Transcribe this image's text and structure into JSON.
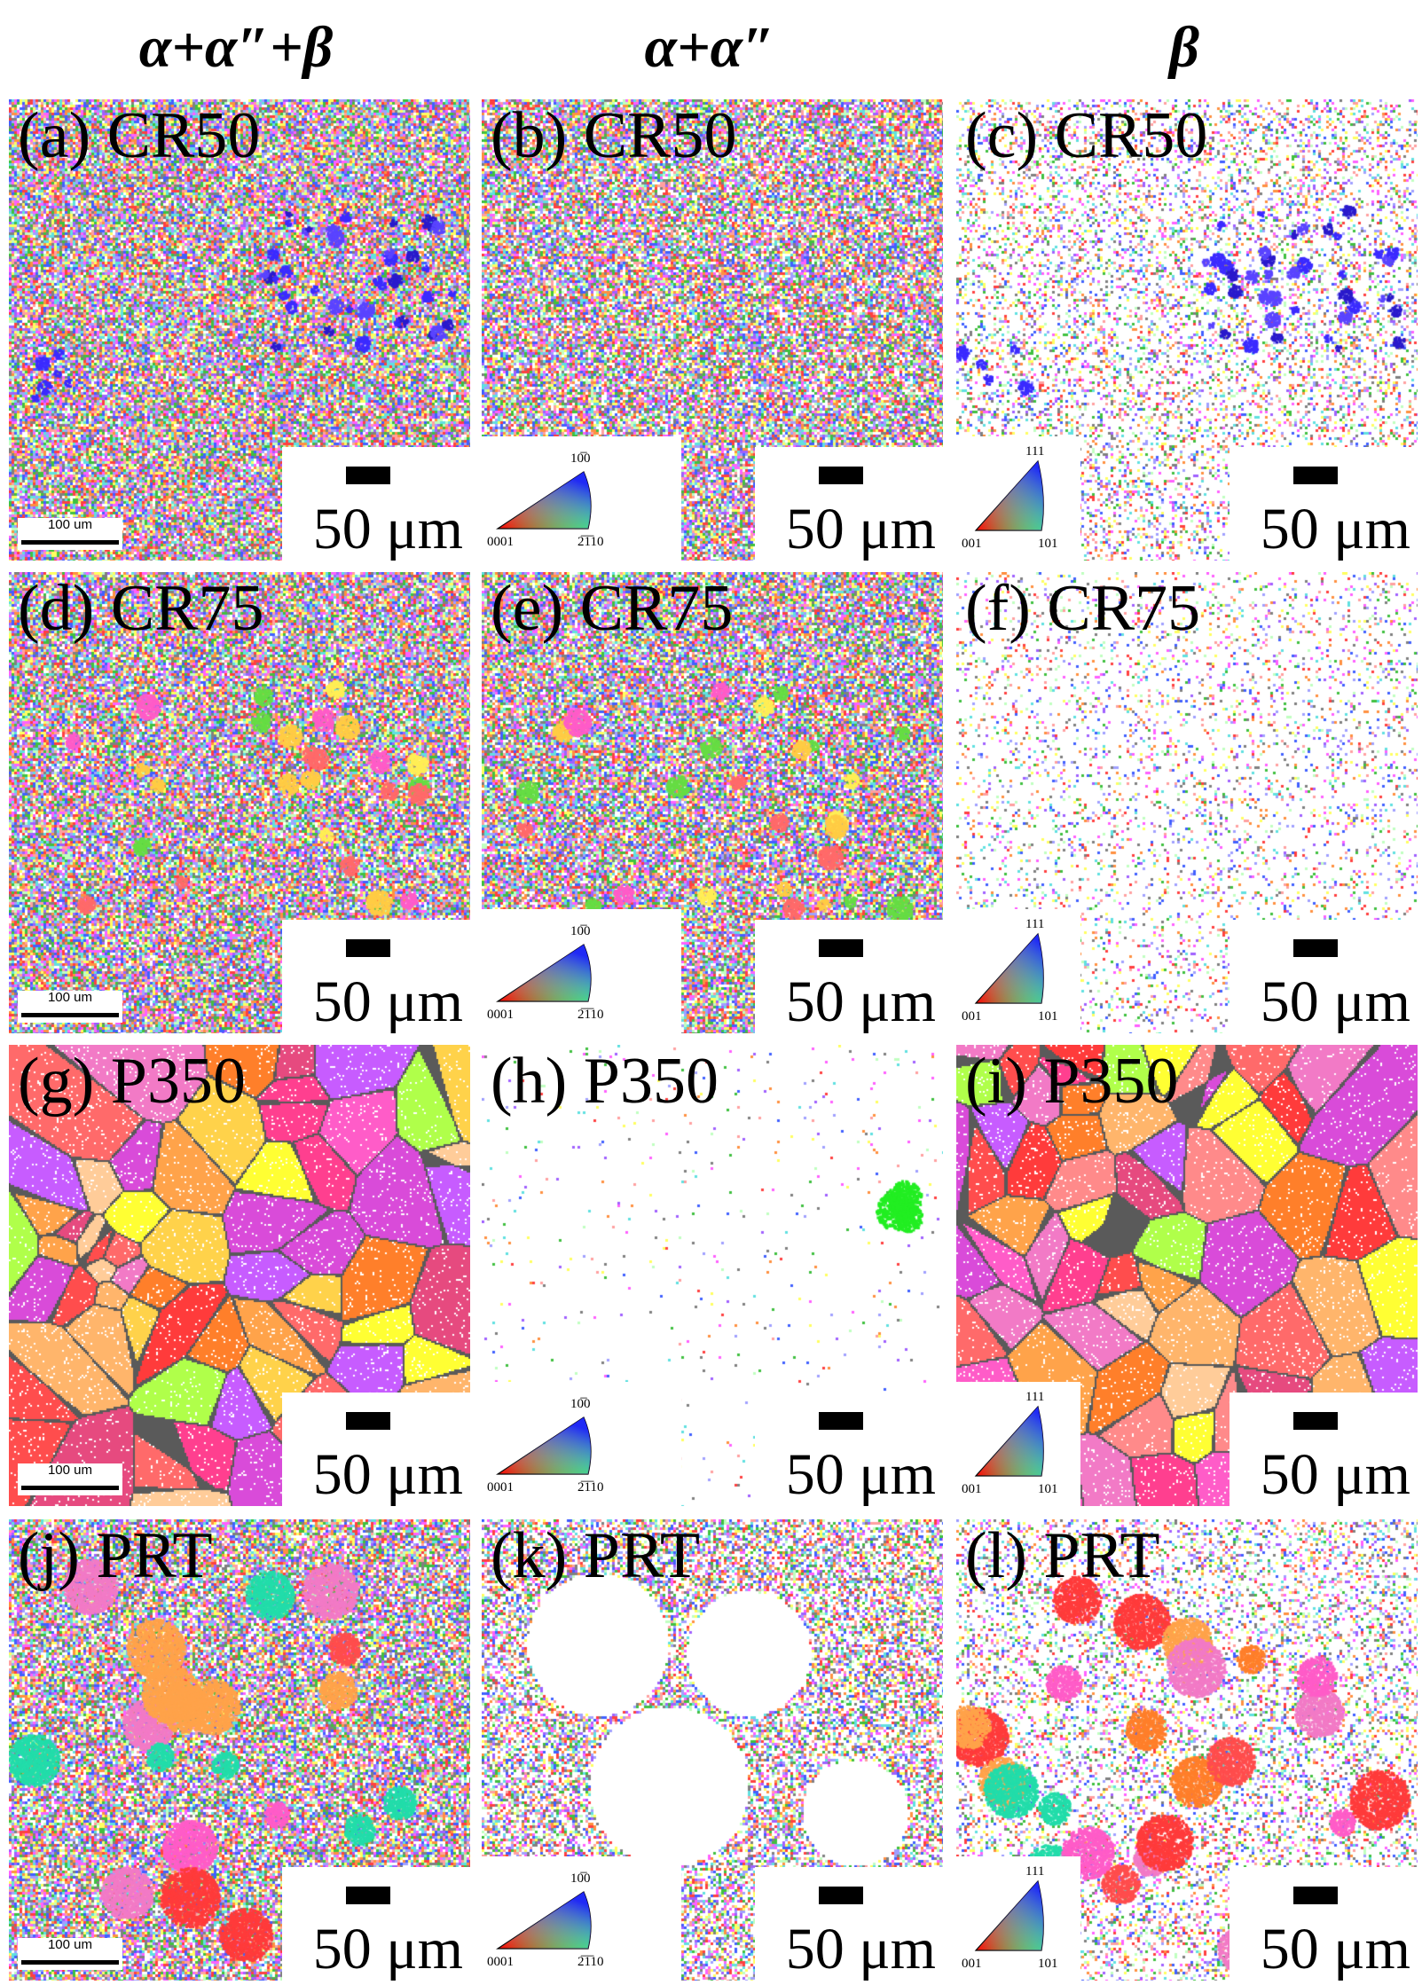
{
  "columns": [
    {
      "id": "col1",
      "title": "α+α″+β"
    },
    {
      "id": "col2",
      "title": "α+α″"
    },
    {
      "id": "col3",
      "title": "β"
    }
  ],
  "scale_label": "50 μm",
  "micron_bar_label": "100 um",
  "hex_legend": {
    "top": "1010̄",
    "left": "0001",
    "right": "2110̄"
  },
  "hex_legend_labels": {
    "top": "10̅0",
    "left": "0001",
    "right": "2̅1̅10"
  },
  "cubic_legend": {
    "top": "111",
    "left": "001",
    "right": "101"
  },
  "panels": [
    {
      "label": "(a) CR50",
      "style": "fine-mixed",
      "density": 0.92,
      "column": 1,
      "blue_cluster": true
    },
    {
      "label": "(b) CR50",
      "style": "fine-mixed",
      "density": 0.85,
      "column": 2
    },
    {
      "label": "(c) CR50",
      "style": "fine-sparse",
      "density": 0.28,
      "column": 3,
      "blue_cluster": true
    },
    {
      "label": "(d) CR75",
      "style": "fine-mixed-band",
      "density": 0.92,
      "column": 1
    },
    {
      "label": "(e) CR75",
      "style": "fine-mixed-band",
      "density": 0.9,
      "column": 2
    },
    {
      "label": "(f) CR75",
      "style": "fine-sparse",
      "density": 0.14,
      "column": 3
    },
    {
      "label": "(g) P350",
      "style": "coarse-grains",
      "column": 1
    },
    {
      "label": "(h) P350",
      "style": "very-sparse",
      "density": 0.02,
      "column": 2
    },
    {
      "label": "(i) P350",
      "style": "coarse-grains",
      "column": 3
    },
    {
      "label": "(j) PRT",
      "style": "fine-with-grains",
      "density": 0.85,
      "column": 1
    },
    {
      "label": "(k) PRT",
      "style": "fine-with-holes",
      "density": 0.6,
      "column": 2
    },
    {
      "label": "(l) PRT",
      "style": "sparse-with-grains",
      "density": 0.3,
      "column": 3
    }
  ],
  "colors": {
    "grain_palette": [
      "#ff3b3b",
      "#ff6a6a",
      "#ff3f8f",
      "#ff5cc8",
      "#f27ac6",
      "#ffa34a",
      "#ffb56b",
      "#ffff33",
      "#ffd24a",
      "#e64a7f",
      "#ff8a8a",
      "#d94bd9",
      "#b0ff4a",
      "#ff7f2a",
      "#ffcc99",
      "#c75cff",
      "#ff4d4d"
    ],
    "fine_palette": [
      "#ff4040",
      "#40c040",
      "#4060ff",
      "#ff60ff",
      "#60e0e0",
      "#ffff60",
      "#ff9040",
      "#a060ff",
      "#808080",
      "#c0ffc0",
      "#ffa0a0",
      "#a0a0ff"
    ],
    "blue_cluster": "#3b2bff"
  }
}
